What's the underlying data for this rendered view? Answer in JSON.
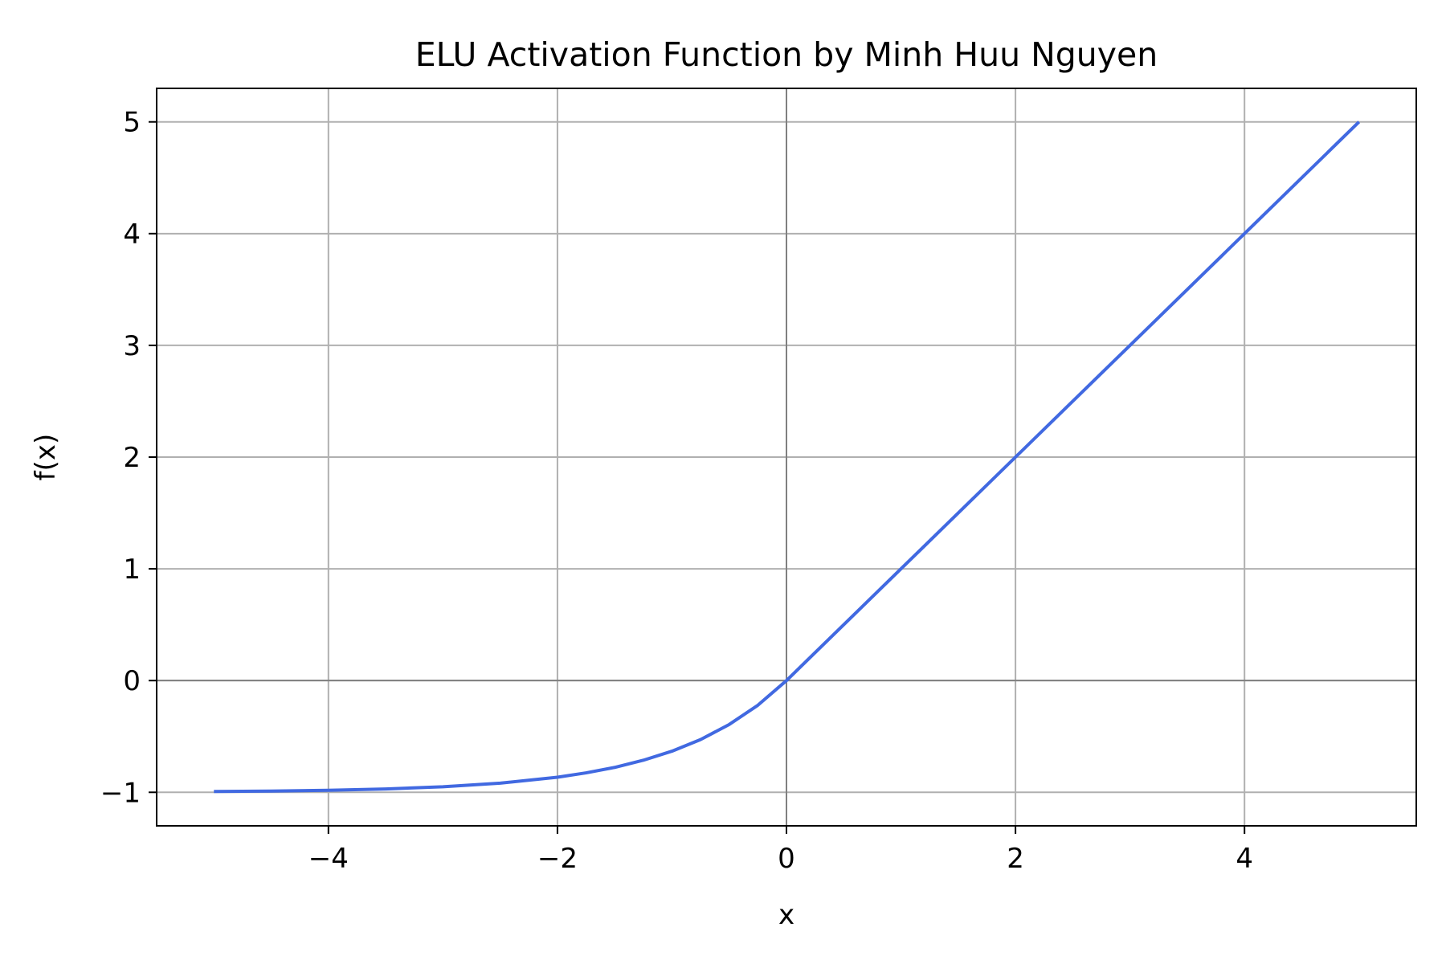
{
  "chart_data": {
    "type": "line",
    "title": "ELU Activation Function by Minh Huu Nguyen",
    "xlabel": "x",
    "ylabel": "f(x)",
    "xlim": [
      -5.5,
      5.5
    ],
    "ylim": [
      -1.3,
      5.3
    ],
    "xticks": [
      -4,
      -2,
      0,
      2,
      4
    ],
    "xtick_labels": [
      "−4",
      "−2",
      "0",
      "2",
      "4"
    ],
    "yticks": [
      -1,
      0,
      1,
      2,
      3,
      4,
      5
    ],
    "ytick_labels": [
      "−1",
      "0",
      "1",
      "2",
      "3",
      "4",
      "5"
    ],
    "grid": true,
    "zero_lines": true,
    "line_color": "#4169e1",
    "grid_color": "#b0b0b0",
    "zero_line_color": "#808080",
    "x": [
      -5,
      -4.5,
      -4,
      -3.5,
      -3,
      -2.5,
      -2,
      -1.75,
      -1.5,
      -1.25,
      -1,
      -0.75,
      -0.5,
      -0.25,
      0,
      1,
      2,
      3,
      4,
      5
    ],
    "y": [
      -0.993,
      -0.989,
      -0.982,
      -0.97,
      -0.95,
      -0.918,
      -0.865,
      -0.826,
      -0.777,
      -0.713,
      -0.632,
      -0.528,
      -0.393,
      -0.221,
      0,
      1,
      2,
      3,
      4,
      5
    ]
  }
}
